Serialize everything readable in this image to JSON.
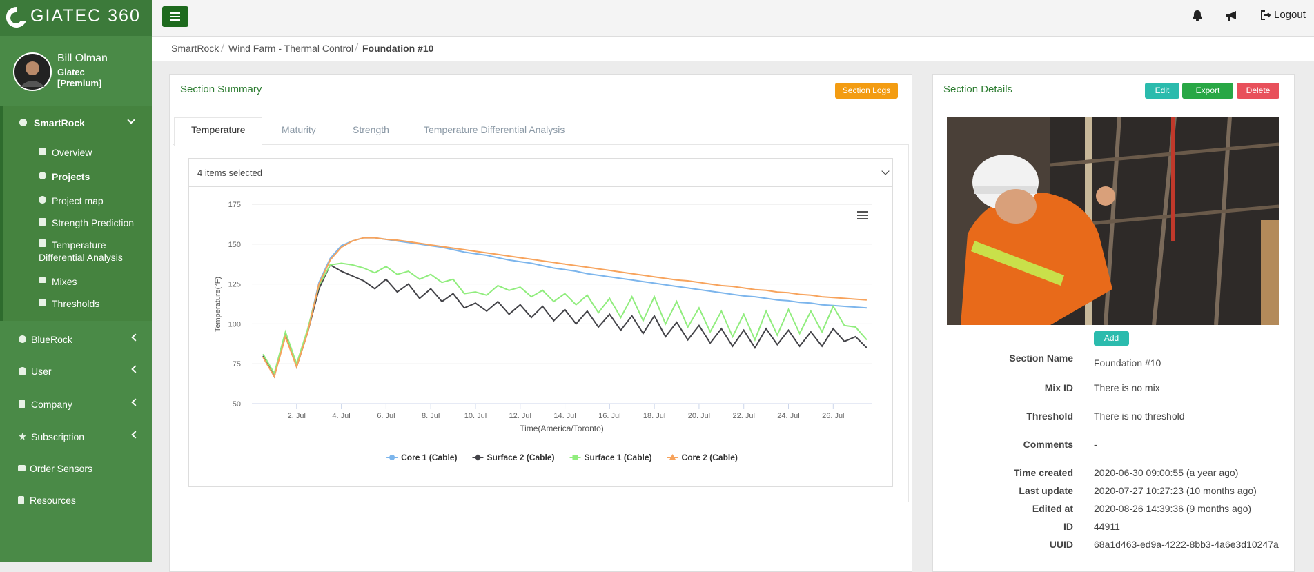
{
  "brand": "GIATEC 360",
  "user": {
    "name": "Bill Olman",
    "company": "Giatec [Premium]"
  },
  "sidebar": {
    "groups": [
      {
        "label": "SmartRock",
        "children": [
          "Overview",
          "Projects",
          "Project map",
          "Strength Prediction",
          "Temperature Differential Analysis",
          "Mixes",
          "Thresholds"
        ]
      },
      {
        "label": "BlueRock"
      },
      {
        "label": "User"
      },
      {
        "label": "Company"
      },
      {
        "label": "Subscription"
      },
      {
        "label": "Order Sensors"
      },
      {
        "label": "Resources"
      }
    ]
  },
  "header": {
    "logout": "Logout"
  },
  "breadcrumb": [
    "SmartRock",
    "Wind Farm - Thermal Control",
    "Foundation #10"
  ],
  "section_summary": {
    "title": "Section Summary",
    "logs_button": "Section Logs",
    "tabs": [
      "Temperature",
      "Maturity",
      "Strength",
      "Temperature Differential Analysis"
    ],
    "select": "4 items selected"
  },
  "chart_data": {
    "type": "line",
    "y_label": "Temperature(°F)",
    "x_label": "Time(America/Toronto)",
    "grid": true,
    "legend": "bottom",
    "xlim": [
      0,
      27.75
    ],
    "ylim": [
      50,
      175
    ],
    "yticks": [
      50,
      75,
      100,
      125,
      150,
      175
    ],
    "xticks": [
      {
        "value": 2,
        "label": "2. Jul"
      },
      {
        "value": 4,
        "label": "4. Jul"
      },
      {
        "value": 6,
        "label": "6. Jul"
      },
      {
        "value": 8,
        "label": "8. Jul"
      },
      {
        "value": 10,
        "label": "10. Jul"
      },
      {
        "value": 12,
        "label": "12. Jul"
      },
      {
        "value": 14,
        "label": "14. Jul"
      },
      {
        "value": 16,
        "label": "16. Jul"
      },
      {
        "value": 18,
        "label": "18. Jul"
      },
      {
        "value": 20,
        "label": "20. Jul"
      },
      {
        "value": 22,
        "label": "22. Jul"
      },
      {
        "value": 24,
        "label": "24. Jul"
      },
      {
        "value": 26,
        "label": "26. Jul"
      }
    ],
    "x": [
      0.5,
      1,
      1.5,
      2,
      2.5,
      3,
      3.5,
      4,
      4.5,
      5,
      5.5,
      6,
      6.5,
      7,
      7.5,
      8,
      8.5,
      9,
      9.5,
      10,
      10.5,
      11,
      11.5,
      12,
      12.5,
      13,
      13.5,
      14,
      14.5,
      15,
      15.5,
      16,
      16.5,
      17,
      17.5,
      18,
      18.5,
      19,
      19.5,
      20,
      20.5,
      21,
      21.5,
      22,
      22.5,
      23,
      23.5,
      24,
      24.5,
      25,
      25.5,
      26,
      26.5,
      27,
      27.5
    ],
    "series": [
      {
        "name": "Core 1 (Cable)",
        "color": "#7cb5ec",
        "marker": "circle",
        "values": [
          80,
          68,
          93,
          74,
          96,
          126,
          141,
          149,
          152,
          154,
          154,
          153,
          152,
          151,
          150,
          149,
          148,
          146.5,
          145,
          144,
          143,
          141.5,
          140,
          139,
          138,
          136.5,
          135,
          134,
          133,
          131.5,
          130.5,
          129.5,
          128.5,
          127.5,
          126.5,
          125.5,
          124.5,
          123.5,
          122.5,
          121.5,
          120.5,
          119.5,
          118.5,
          117.5,
          117,
          116,
          115,
          114.5,
          113.5,
          113,
          112,
          111.5,
          111,
          110.5,
          110
        ]
      },
      {
        "name": "Surface 2 (Cable)",
        "color": "#434348",
        "marker": "diamond",
        "values": [
          80,
          67,
          94,
          73,
          95,
          122,
          137,
          133,
          130,
          127,
          122,
          128,
          120,
          125,
          116,
          122,
          114,
          119,
          110,
          113,
          108,
          114,
          106,
          112,
          104,
          111,
          102,
          109,
          100,
          108,
          98,
          106,
          96,
          105,
          94,
          105,
          92,
          101,
          90,
          99,
          88,
          97,
          86,
          96,
          85,
          97,
          87,
          96,
          86,
          95,
          86,
          97,
          89,
          92,
          85
        ]
      },
      {
        "name": "Surface 1 (Cable)",
        "color": "#90ed7d",
        "marker": "square",
        "values": [
          81,
          69,
          95,
          75,
          97,
          124,
          137,
          138,
          137,
          135,
          132,
          136,
          131,
          133,
          128,
          131,
          126,
          128,
          119,
          120,
          118,
          124,
          121,
          123,
          117,
          121,
          114,
          119,
          112,
          118,
          107,
          116,
          104,
          117,
          102,
          117,
          100,
          114,
          98,
          110,
          95,
          108,
          92,
          106,
          90,
          108,
          93,
          109,
          94,
          108,
          95,
          111,
          99,
          98,
          90
        ]
      },
      {
        "name": "Core 2 (Cable)",
        "color": "#f7a35c",
        "marker": "triangle",
        "values": [
          79,
          67,
          92,
          73,
          95,
          125,
          140,
          148,
          152,
          154,
          154,
          153,
          152.5,
          151.5,
          150.5,
          149.5,
          148.5,
          147.5,
          146.5,
          145.5,
          144.5,
          143.5,
          142.5,
          141.5,
          140.5,
          139.5,
          138.5,
          137.5,
          136.5,
          135.5,
          134.5,
          133.5,
          132.5,
          131.5,
          130.5,
          129.5,
          128.5,
          127.5,
          127,
          126,
          125,
          124,
          123.5,
          122.5,
          121.5,
          121,
          120,
          119.5,
          118.5,
          118,
          117,
          116.5,
          116,
          115.5,
          115
        ]
      }
    ]
  },
  "section_details": {
    "title": "Section Details",
    "buttons": [
      "Edit",
      "Export",
      "Delete"
    ],
    "add_button": "Add",
    "fields": [
      {
        "label": "Section Name",
        "value": "Foundation #10"
      },
      {
        "label": "Mix ID",
        "value": "There is no mix"
      },
      {
        "label": "Threshold",
        "value": "There is no threshold"
      },
      {
        "label": "Comments",
        "value": "-"
      },
      {
        "label": "Time created",
        "value": "2020-06-30 09:00:55 (a year ago)"
      },
      {
        "label": "Last update",
        "value": "2020-07-27 10:27:23 (10 months ago)"
      },
      {
        "label": "Edited at",
        "value": "2020-08-26 14:39:36 (9 months ago)"
      },
      {
        "label": "ID",
        "value": "44911"
      },
      {
        "label": "UUID",
        "value": "68a1d463-ed9a-4222-8bb3-4a6e3d10247a"
      }
    ]
  }
}
